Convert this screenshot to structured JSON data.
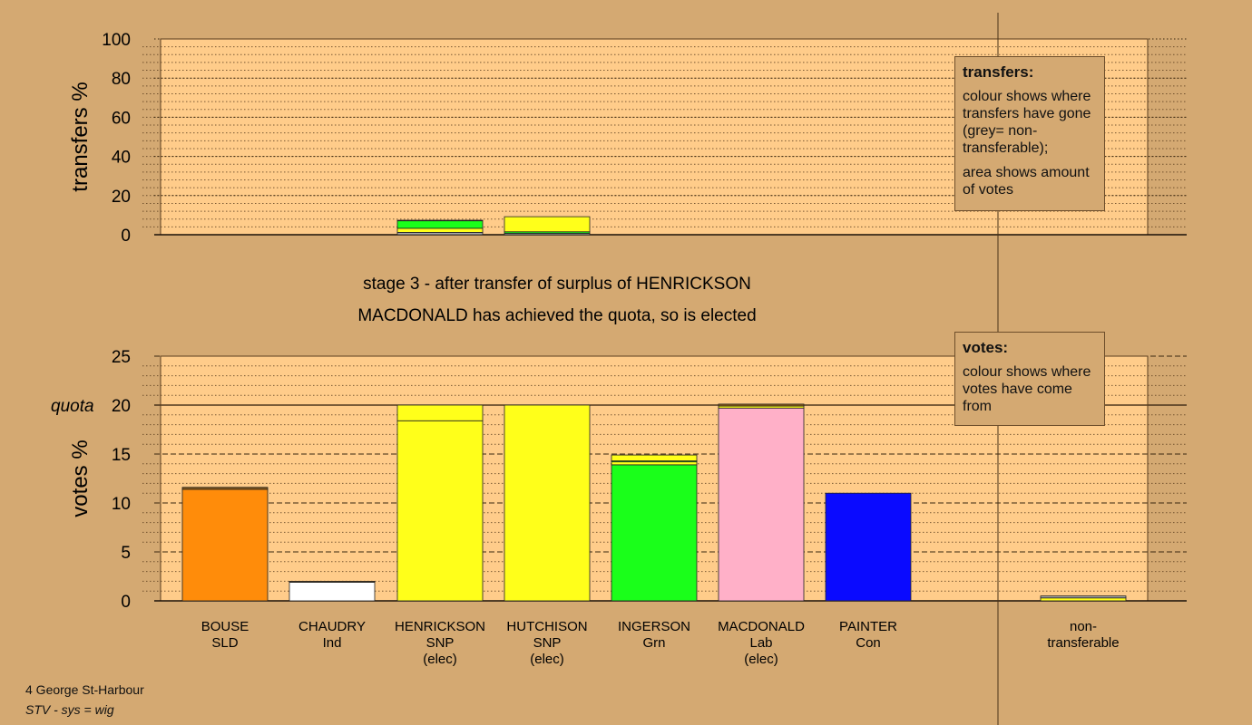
{
  "chart_data": [
    {
      "type": "bar",
      "stacked": true,
      "ylabel": "transfers %",
      "ylim": [
        0,
        100
      ],
      "yticks": [
        0,
        20,
        40,
        60,
        80,
        100
      ],
      "grid": "dotted",
      "categories": [
        "BOUSE SLD",
        "CHAUDRY Ind",
        "HENRICKSON SNP (elec)",
        "HUTCHISON SNP (elec)",
        "INGERSON Grn",
        "MACDONALD Lab (elec)",
        "PAINTER Con",
        "non-transferable"
      ],
      "bars": [
        {
          "category": "HENRICKSON SNP (elec)",
          "segments": [
            {
              "value": 1.2,
              "color": "#a8a8a8"
            },
            {
              "value": 2.1,
              "color": "#ffff1a"
            },
            {
              "value": 3.8,
              "color": "#1aff1a"
            },
            {
              "value": 0.3,
              "color": "#ffb0c8"
            }
          ]
        },
        {
          "category": "HUTCHISON SNP (elec)",
          "segments": [
            {
              "value": 0.7,
              "color": "#a8a8a8"
            },
            {
              "value": 0.8,
              "color": "#1aff1a"
            },
            {
              "value": 7.7,
              "color": "#ffff1a"
            }
          ]
        }
      ]
    },
    {
      "type": "bar",
      "stacked": true,
      "ylabel": "votes %",
      "ylim": [
        0,
        25
      ],
      "yticks": [
        0,
        5,
        10,
        15,
        20,
        25
      ],
      "quota": 20,
      "quota_label": "quota",
      "grid": "dashed",
      "categories": [
        "BOUSE SLD",
        "CHAUDRY Ind",
        "HENRICKSON SNP (elec)",
        "HUTCHISON SNP (elec)",
        "INGERSON Grn",
        "MACDONALD Lab (elec)",
        "PAINTER Con",
        "non-transferable"
      ],
      "bars": [
        {
          "category": "BOUSE SLD",
          "segments": [
            {
              "value": 11.4,
              "color": "#ff8c0a"
            },
            {
              "value": 0.2,
              "color": "#8a5a18"
            }
          ]
        },
        {
          "category": "CHAUDRY Ind",
          "segments": [
            {
              "value": 1.9,
              "color": "#ffffff"
            },
            {
              "value": 0.1,
              "color": "#8a5a18"
            }
          ]
        },
        {
          "category": "HENRICKSON SNP (elec)",
          "segments": [
            {
              "value": 18.4,
              "color": "#ffff1a"
            },
            {
              "value": 1.6,
              "color": "#ffff1a"
            }
          ]
        },
        {
          "category": "HUTCHISON SNP (elec)",
          "segments": [
            {
              "value": 20.0,
              "color": "#ffff1a"
            }
          ]
        },
        {
          "category": "INGERSON Grn",
          "segments": [
            {
              "value": 13.9,
              "color": "#1aff1a"
            },
            {
              "value": 0.3,
              "color": "#ffff1a"
            },
            {
              "value": 0.1,
              "color": "#1aff1a"
            },
            {
              "value": 0.6,
              "color": "#ffff1a"
            }
          ]
        },
        {
          "category": "MACDONALD Lab (elec)",
          "segments": [
            {
              "value": 19.7,
              "color": "#ffb0c8"
            },
            {
              "value": 0.2,
              "color": "#ffff1a"
            },
            {
              "value": 0.2,
              "color": "#8a5a18"
            }
          ]
        },
        {
          "category": "PAINTER Con",
          "segments": [
            {
              "value": 11.0,
              "color": "#0a0aff"
            }
          ]
        },
        {
          "category": "non-transferable",
          "segments": [
            {
              "value": 0.3,
              "color": "#ffff1a"
            },
            {
              "value": 0.2,
              "color": "#a8a8a8"
            }
          ]
        }
      ]
    }
  ],
  "labels": {
    "title_line1": "stage 3 - after transfer of surplus of HENRICKSON",
    "title_line2": "MACDONALD has achieved the quota, so is elected",
    "categories": [
      [
        "BOUSE",
        "SLD",
        ""
      ],
      [
        "CHAUDRY",
        "Ind",
        ""
      ],
      [
        "HENRICKSON",
        "SNP",
        "(elec)"
      ],
      [
        "HUTCHISON",
        "SNP",
        "(elec)"
      ],
      [
        "INGERSON",
        "Grn",
        ""
      ],
      [
        "MACDONALD",
        "Lab",
        "(elec)"
      ],
      [
        "PAINTER",
        "Con",
        ""
      ],
      [
        "non-",
        "transferable",
        ""
      ]
    ]
  },
  "legend_transfers": {
    "title": "transfers:",
    "text1": "colour shows where transfers have gone (grey= non-transferable);",
    "text2": "area shows amount of votes"
  },
  "legend_votes": {
    "title": "votes:",
    "text1": "colour shows where votes have come from"
  },
  "footer": {
    "line1": "4 George St-Harbour",
    "line2": "STV - sys = wig"
  },
  "colors": {
    "background": "#d4a972",
    "plot_area": "#ffcc8a",
    "frame": "#5a3d1e"
  }
}
